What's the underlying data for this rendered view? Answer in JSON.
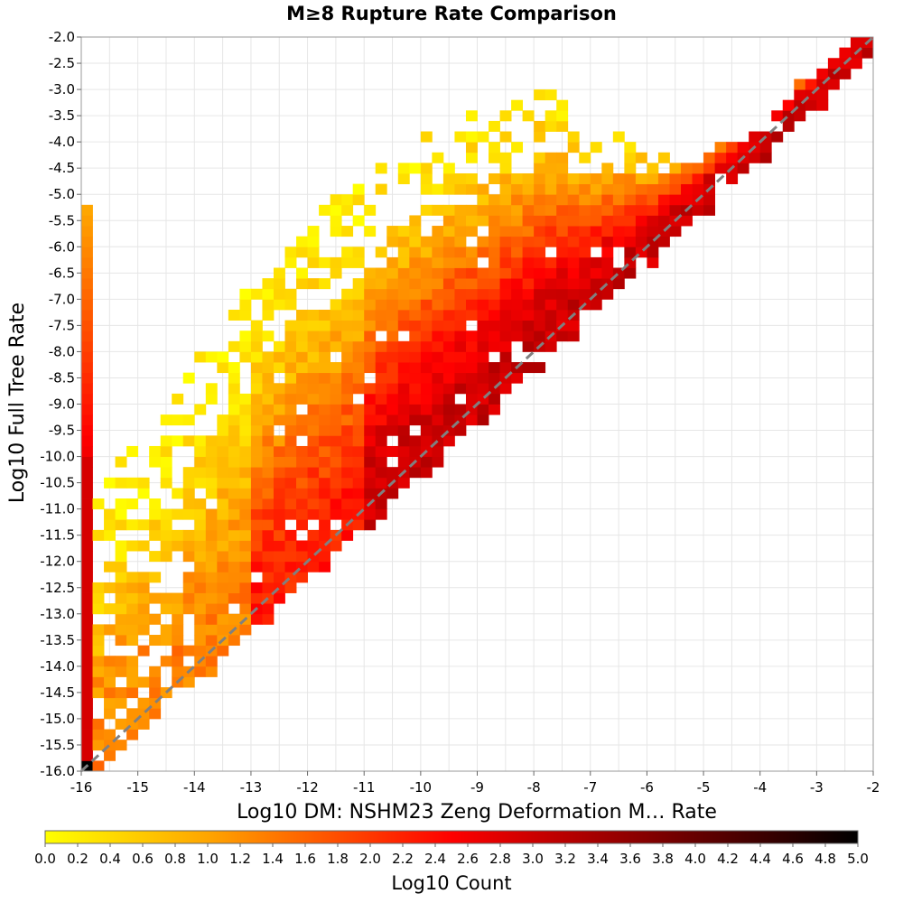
{
  "chart_data": {
    "type": "heatmap",
    "title": "M≥8 Rupture Rate Comparison",
    "xlabel": "Log10 DM: NSHM23 Zeng Deformation M… Rate",
    "ylabel": "Log10 Full Tree Rate",
    "xlim": [
      -16,
      -2
    ],
    "ylim": [
      -16,
      -2
    ],
    "x_ticks": [
      "-16",
      "-15",
      "-14",
      "-13",
      "-12",
      "-11",
      "-10",
      "-9",
      "-8",
      "-7",
      "-6",
      "-5",
      "-4",
      "-3",
      "-2"
    ],
    "y_ticks": [
      "-2.0",
      "-2.5",
      "-3.0",
      "-3.5",
      "-4.0",
      "-4.5",
      "-5.0",
      "-5.5",
      "-6.0",
      "-6.5",
      "-7.0",
      "-7.5",
      "-8.0",
      "-8.5",
      "-9.0",
      "-9.5",
      "-10.0",
      "-10.5",
      "-11.0",
      "-11.5",
      "-12.0",
      "-12.5",
      "-13.0",
      "-13.5",
      "-14.0",
      "-14.5",
      "-15.0",
      "-15.5",
      "-16.0"
    ],
    "bin_width": 0.2,
    "grid": true,
    "reference_line": {
      "from": [
        -16,
        -16
      ],
      "to": [
        -2,
        -2
      ],
      "style": "dashed",
      "color": "#808080"
    },
    "colorbar": {
      "label": "Log10 Count",
      "range": [
        0,
        5
      ],
      "ticks": [
        "0.0",
        "0.2",
        "0.4",
        "0.6",
        "0.8",
        "1.0",
        "1.2",
        "1.4",
        "1.6",
        "1.8",
        "2.0",
        "2.2",
        "2.4",
        "2.6",
        "2.8",
        "3.0",
        "3.2",
        "3.4",
        "3.6",
        "3.8",
        "4.0",
        "4.2",
        "4.4",
        "4.6",
        "4.8",
        "5.0"
      ],
      "colors": [
        "#ffff00",
        "#ffa500",
        "#ff0000",
        "#000000"
      ]
    },
    "density_model": {
      "description_free": true,
      "ridge_peak_log10_count": 3.0,
      "lower_edge_offset": 0.4,
      "upper_extent_at_x": [
        [
          -15.8,
          5.0
        ],
        [
          -14,
          6.0
        ],
        [
          -12,
          6.6
        ],
        [
          -10,
          6.0
        ],
        [
          -8,
          5.0
        ],
        [
          -6,
          1.6
        ],
        [
          -4.5,
          0.4
        ]
      ],
      "x_min_left_column": -16.0,
      "left_column_ylim": [
        -16.0,
        -5.2
      ]
    }
  }
}
